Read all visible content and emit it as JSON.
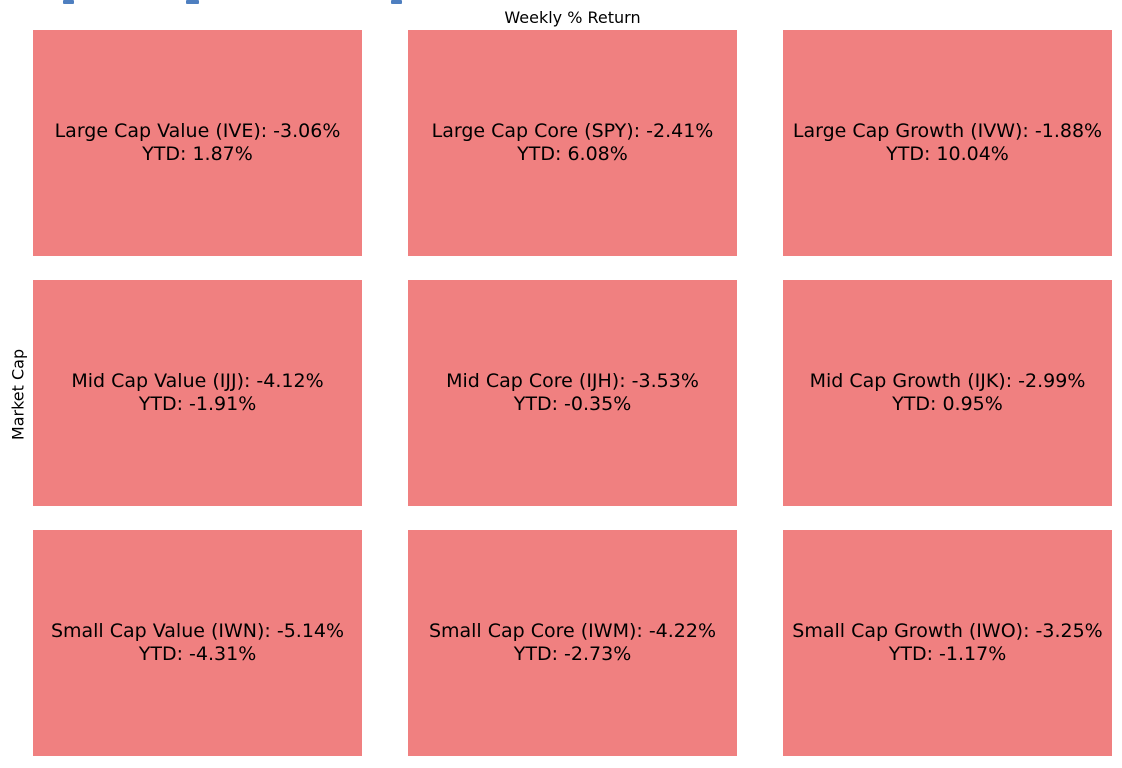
{
  "figure": {
    "title": "Weekly % Return",
    "ylabel": "Market Cap"
  },
  "colors": {
    "cell_fill": "#F08080",
    "text": "#000000",
    "clipped_link_blue": "#4e7fc0"
  },
  "cells": [
    {
      "line1": "Large Cap Value (IVE): -3.06%",
      "line2": "YTD: 1.87%"
    },
    {
      "line1": "Large Cap Core (SPY): -2.41%",
      "line2": "YTD: 6.08%"
    },
    {
      "line1": "Large Cap Growth (IVW): -1.88%",
      "line2": "YTD: 10.04%"
    },
    {
      "line1": "Mid Cap Value (IJJ): -4.12%",
      "line2": "YTD: -1.91%"
    },
    {
      "line1": "Mid Cap Core (IJH): -3.53%",
      "line2": "YTD: -0.35%"
    },
    {
      "line1": "Mid Cap Growth (IJK): -2.99%",
      "line2": "YTD: 0.95%"
    },
    {
      "line1": "Small Cap Value (IWN): -5.14%",
      "line2": "YTD: -4.31%"
    },
    {
      "line1": "Small Cap Core (IWM): -4.22%",
      "line2": "YTD: -2.73%"
    },
    {
      "line1": "Small Cap Growth (IWO): -3.25%",
      "line2": "YTD: -1.17%"
    }
  ],
  "chart_data": {
    "type": "heatmap",
    "title": "Weekly % Return",
    "xlabel": "",
    "ylabel": "Market Cap",
    "row_labels": [
      "Large Cap",
      "Mid Cap",
      "Small Cap"
    ],
    "col_labels": [
      "Value",
      "Core",
      "Growth"
    ],
    "tickers": [
      [
        "IVE",
        "SPY",
        "IVW"
      ],
      [
        "IJJ",
        "IJH",
        "IJK"
      ],
      [
        "IWN",
        "IWM",
        "IWO"
      ]
    ],
    "series": [
      {
        "name": "Weekly % Return",
        "values": [
          [
            -3.06,
            -2.41,
            -1.88
          ],
          [
            -4.12,
            -3.53,
            -2.99
          ],
          [
            -5.14,
            -4.22,
            -3.25
          ]
        ]
      },
      {
        "name": "YTD % Return",
        "values": [
          [
            1.87,
            6.08,
            10.04
          ],
          [
            -1.91,
            -0.35,
            0.95
          ],
          [
            -4.31,
            -2.73,
            -1.17
          ]
        ]
      }
    ],
    "cell_fill_color": "#F08080",
    "grid": false,
    "legend_position": "none"
  }
}
